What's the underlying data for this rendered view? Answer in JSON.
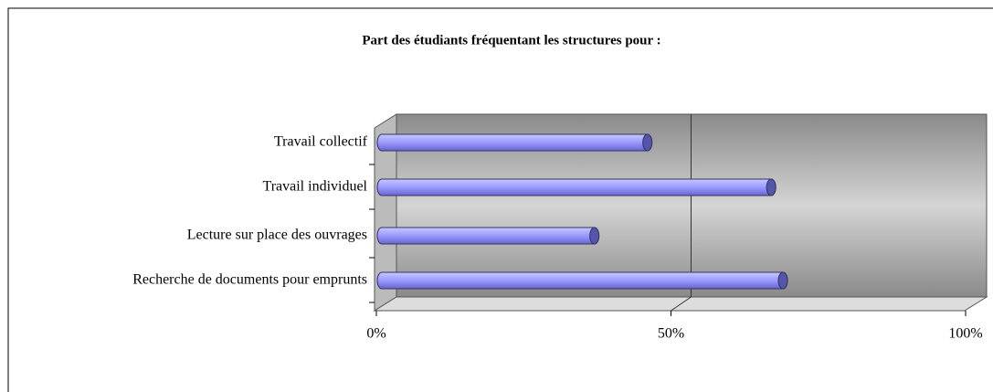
{
  "chart_data": {
    "type": "bar3d_horizontal",
    "title": "Part des étudiants fréquentant les structures pour :",
    "categories": [
      "Travail collectif",
      "Travail individuel",
      "Lecture sur place des ouvrages",
      "Recherche de documents pour emprunts"
    ],
    "values": [
      46,
      67,
      37,
      69
    ],
    "color": "#9999ff",
    "xlim": [
      0,
      100
    ],
    "xticks": [
      {
        "value": 0,
        "label": "0%"
      },
      {
        "value": 50,
        "label": "50%"
      },
      {
        "value": 100,
        "label": "100%"
      }
    ],
    "grid": true
  }
}
